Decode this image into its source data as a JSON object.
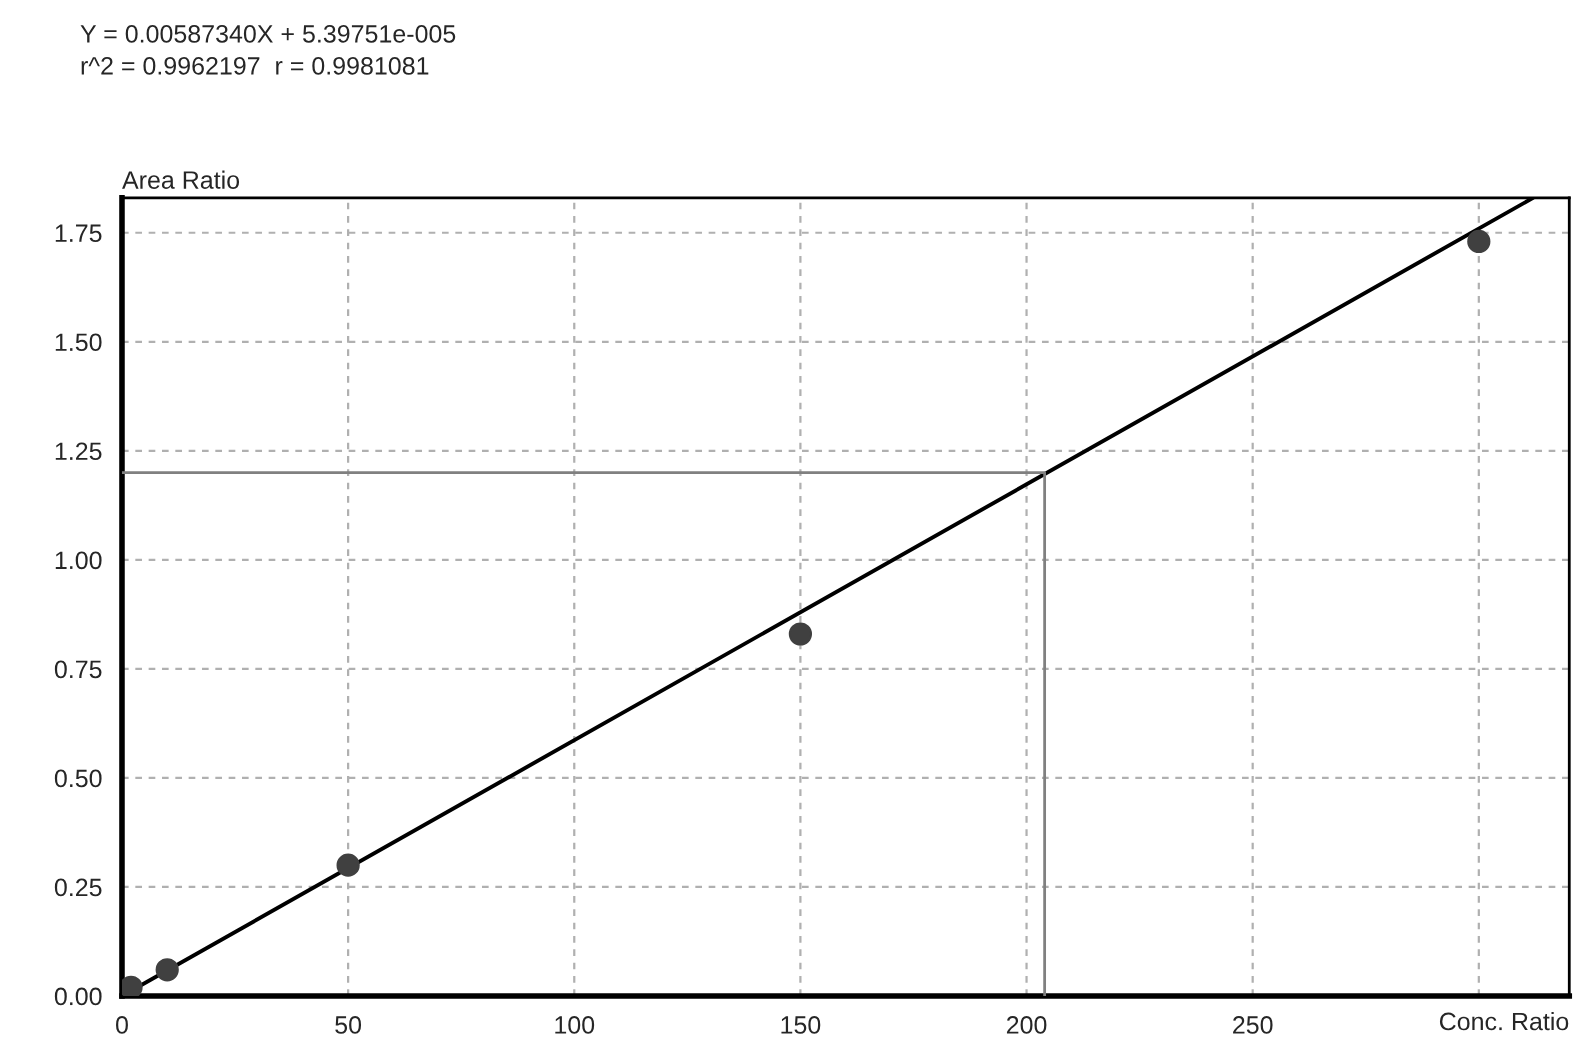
{
  "chart_data": {
    "type": "scatter",
    "title": "Y = 0.00587340X + 5.39751e-005",
    "subtitle": "r^2 = 0.9962197  r = 0.9981081",
    "xlabel": "Conc. Ratio",
    "ylabel": "Area Ratio",
    "series": [
      {
        "color": "#404040",
        "marker": "circle",
        "x": [
          2,
          10,
          50,
          150,
          300
        ],
        "values": [
          0.02,
          0.06,
          0.3,
          0.83,
          1.73
        ]
      },
      {
        "type": "line",
        "color": "#000000",
        "line_style": "solid",
        "x": [
          0,
          312
        ],
        "values": [
          0.0,
          1.83
        ]
      },
      {
        "type": "line",
        "color": "#808080",
        "line_style": "solid",
        "x": [
          0,
          204,
          204
        ],
        "values": [
          1.2,
          1.2,
          0.0
        ]
      }
    ],
    "xlim": [
      0,
      320
    ],
    "ylim": [
      0,
      1.83
    ],
    "xticks": [
      0,
      50,
      100,
      150,
      200,
      250,
      {
        "value": 300,
        "label": null
      }
    ],
    "yticks": [
      {
        "value": 0,
        "label": "0.00"
      },
      {
        "value": 0.25,
        "label": "0.25"
      },
      {
        "value": 0.5,
        "label": "0.50"
      },
      {
        "value": 0.75,
        "label": "0.75"
      },
      {
        "value": 1.0,
        "label": "1.00"
      },
      {
        "value": 1.25,
        "label": "1.25"
      },
      {
        "value": 1.5,
        "label": "1.50"
      },
      {
        "value": 1.75,
        "label": "1.75"
      }
    ],
    "grid": true
  }
}
